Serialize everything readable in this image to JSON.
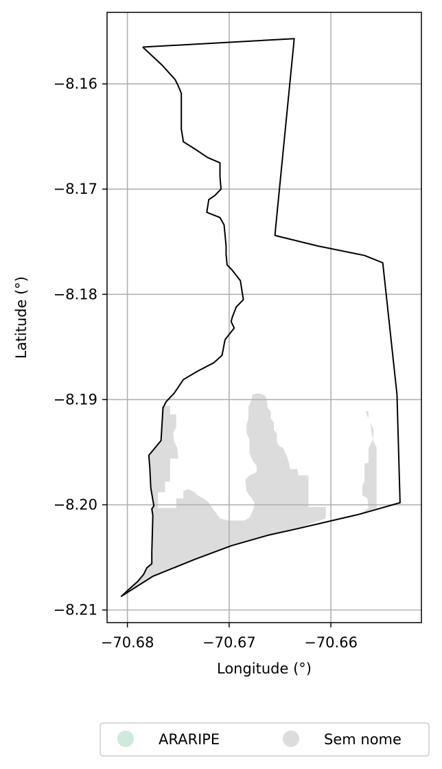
{
  "chart_data": {
    "type": "map",
    "title": "",
    "xlabel": "Longitude (°)",
    "ylabel": "Latitude (°)",
    "xlim": [
      -70.682,
      -70.6511
    ],
    "ylim": [
      -8.2112,
      -8.1532
    ],
    "grid": true,
    "x_ticks": [
      -70.68,
      -70.67,
      -70.66
    ],
    "x_tick_labels": [
      "−70.68",
      "−70.67",
      "−70.66"
    ],
    "y_ticks": [
      -8.16,
      -8.17,
      -8.18,
      -8.19,
      -8.2,
      -8.21
    ],
    "y_tick_labels": [
      "−8.16",
      "−8.17",
      "−8.18",
      "−8.19",
      "−8.20",
      "−8.21"
    ],
    "boundary": {
      "name": "municipality boundary",
      "color": "#000000",
      "points": [
        [
          -70.6785,
          -8.1565
        ],
        [
          -70.6636,
          -8.1557
        ],
        [
          -70.6654,
          -8.1734
        ],
        [
          -70.6655,
          -8.1744
        ],
        [
          -70.6613,
          -8.1754
        ],
        [
          -70.6567,
          -8.1763
        ],
        [
          -70.6549,
          -8.177
        ],
        [
          -70.6535,
          -8.1895
        ],
        [
          -70.6532,
          -8.1998
        ],
        [
          -70.6572,
          -8.2009
        ],
        [
          -70.6612,
          -8.2018
        ],
        [
          -70.6634,
          -8.2023
        ],
        [
          -70.6662,
          -8.2029
        ],
        [
          -70.6698,
          -8.2039
        ],
        [
          -70.6734,
          -8.2052
        ],
        [
          -70.6775,
          -8.2068
        ],
        [
          -70.6806,
          -8.2087
        ],
        [
          -70.6797,
          -8.2079
        ],
        [
          -70.679,
          -8.2073
        ],
        [
          -70.6784,
          -8.2066
        ],
        [
          -70.6781,
          -8.206
        ],
        [
          -70.6776,
          -8.2056
        ],
        [
          -70.6776,
          -8.2045
        ],
        [
          -70.6775,
          -8.201
        ],
        [
          -70.6776,
          -8.2004
        ],
        [
          -70.6774,
          -8.2001
        ],
        [
          -70.6777,
          -8.1984
        ],
        [
          -70.6778,
          -8.1965
        ],
        [
          -70.6779,
          -8.1953
        ],
        [
          -70.6767,
          -8.1939
        ],
        [
          -70.6765,
          -8.1908
        ],
        [
          -70.6762,
          -8.1902
        ],
        [
          -70.6754,
          -8.1894
        ],
        [
          -70.6745,
          -8.1881
        ],
        [
          -70.6731,
          -8.1873
        ],
        [
          -70.6715,
          -8.1865
        ],
        [
          -70.6707,
          -8.1858
        ],
        [
          -70.6704,
          -8.1843
        ],
        [
          -70.6695,
          -8.1832
        ],
        [
          -70.6698,
          -8.1826
        ],
        [
          -70.6697,
          -8.1822
        ],
        [
          -70.6693,
          -8.1812
        ],
        [
          -70.6686,
          -8.1805
        ],
        [
          -70.6689,
          -8.1787
        ],
        [
          -70.6697,
          -8.1777
        ],
        [
          -70.6702,
          -8.1772
        ],
        [
          -70.6703,
          -8.1762
        ],
        [
          -70.6703,
          -8.1754
        ],
        [
          -70.6705,
          -8.1734
        ],
        [
          -70.6709,
          -8.1727
        ],
        [
          -70.6722,
          -8.1722
        ],
        [
          -70.672,
          -8.171
        ],
        [
          -70.6714,
          -8.1706
        ],
        [
          -70.6708,
          -8.17
        ],
        [
          -70.6709,
          -8.1688
        ],
        [
          -70.6709,
          -8.1675
        ],
        [
          -70.6721,
          -8.167
        ],
        [
          -70.6735,
          -8.1661
        ],
        [
          -70.6745,
          -8.1655
        ],
        [
          -70.6747,
          -8.1643
        ],
        [
          -70.6747,
          -8.1622
        ],
        [
          -70.6747,
          -8.1609
        ],
        [
          -70.675,
          -8.1602
        ],
        [
          -70.6753,
          -8.1596
        ],
        [
          -70.6766,
          -8.1582
        ],
        [
          -70.6785,
          -8.1565
        ]
      ]
    },
    "categories": [
      {
        "name": "ARARIPE",
        "color": "#cfeadc",
        "regions": []
      },
      {
        "name": "Sem nome",
        "color": "#dcdcdc",
        "regions": [
          [
            [
              -70.6766,
              -8.1906
            ],
            [
              -70.6758,
              -8.1906
            ],
            [
              -70.6758,
              -8.1914
            ],
            [
              -70.6752,
              -8.1914
            ],
            [
              -70.6752,
              -8.1926
            ],
            [
              -70.6755,
              -8.1932
            ],
            [
              -70.6754,
              -8.194
            ],
            [
              -70.6751,
              -8.1946
            ],
            [
              -70.675,
              -8.1956
            ],
            [
              -70.6758,
              -8.1956
            ],
            [
              -70.6758,
              -8.1978
            ],
            [
              -70.6763,
              -8.1978
            ],
            [
              -70.6763,
              -8.1988
            ],
            [
              -70.677,
              -8.1988
            ],
            [
              -70.677,
              -8.2003
            ],
            [
              -70.6752,
              -8.2003
            ],
            [
              -70.6752,
              -8.1994
            ],
            [
              -70.6745,
              -8.1994
            ],
            [
              -70.6745,
              -8.1987
            ],
            [
              -70.674,
              -8.1985
            ],
            [
              -70.6734,
              -8.1988
            ],
            [
              -70.6731,
              -8.1991
            ],
            [
              -70.6725,
              -8.1994
            ],
            [
              -70.672,
              -8.1998
            ],
            [
              -70.6715,
              -8.2005
            ],
            [
              -70.6709,
              -8.2013
            ],
            [
              -70.6701,
              -8.2015
            ],
            [
              -70.6692,
              -8.2015
            ],
            [
              -70.6685,
              -8.2015
            ],
            [
              -70.668,
              -8.2012
            ],
            [
              -70.6676,
              -8.2004
            ],
            [
              -70.6675,
              -8.1998
            ],
            [
              -70.6678,
              -8.1994
            ],
            [
              -70.6683,
              -8.1987
            ],
            [
              -70.6684,
              -8.1976
            ],
            [
              -70.668,
              -8.1972
            ],
            [
              -70.6673,
              -8.1969
            ],
            [
              -70.6673,
              -8.1963
            ],
            [
              -70.6677,
              -8.1958
            ],
            [
              -70.668,
              -8.1951
            ],
            [
              -70.668,
              -8.1938
            ],
            [
              -70.6683,
              -8.1932
            ],
            [
              -70.6683,
              -8.1924
            ],
            [
              -70.6681,
              -8.1918
            ],
            [
              -70.6681,
              -8.1907
            ],
            [
              -70.6678,
              -8.19
            ],
            [
              -70.6677,
              -8.1895
            ],
            [
              -70.6671,
              -8.1894
            ],
            [
              -70.6665,
              -8.1896
            ],
            [
              -70.6663,
              -8.19
            ],
            [
              -70.6662,
              -8.1908
            ],
            [
              -70.6659,
              -8.1911
            ],
            [
              -70.6659,
              -8.1918
            ],
            [
              -70.6656,
              -8.1922
            ],
            [
              -70.6656,
              -8.1929
            ],
            [
              -70.6653,
              -8.1932
            ],
            [
              -70.6653,
              -8.194
            ],
            [
              -70.6651,
              -8.1944
            ],
            [
              -70.6647,
              -8.1946
            ],
            [
              -70.6643,
              -8.1954
            ],
            [
              -70.6641,
              -8.1961
            ],
            [
              -70.664,
              -8.1966
            ],
            [
              -70.6633,
              -8.1966
            ],
            [
              -70.6632,
              -8.1972
            ],
            [
              -70.6622,
              -8.1972
            ],
            [
              -70.6622,
              -8.2002
            ],
            [
              -70.6605,
              -8.2002
            ],
            [
              -70.6605,
              -8.2013
            ],
            [
              -70.6634,
              -8.2023
            ],
            [
              -70.6662,
              -8.2029
            ],
            [
              -70.6698,
              -8.2039
            ],
            [
              -70.6734,
              -8.2052
            ],
            [
              -70.6775,
              -8.2068
            ],
            [
              -70.6806,
              -8.2087
            ],
            [
              -70.6797,
              -8.2079
            ],
            [
              -70.679,
              -8.2073
            ],
            [
              -70.6784,
              -8.2066
            ],
            [
              -70.6781,
              -8.206
            ],
            [
              -70.6776,
              -8.2056
            ],
            [
              -70.6776,
              -8.2045
            ],
            [
              -70.6775,
              -8.201
            ],
            [
              -70.6776,
              -8.2004
            ],
            [
              -70.6774,
              -8.2001
            ],
            [
              -70.6777,
              -8.1984
            ],
            [
              -70.6778,
              -8.1965
            ],
            [
              -70.6779,
              -8.1953
            ],
            [
              -70.6767,
              -8.1939
            ],
            [
              -70.6766,
              -8.1906
            ]
          ],
          [
            [
              -70.6566,
              -8.1911
            ],
            [
              -70.6563,
              -8.1911
            ],
            [
              -70.6563,
              -8.1918
            ],
            [
              -70.6561,
              -8.1922
            ],
            [
              -70.656,
              -8.1933
            ],
            [
              -70.6558,
              -8.1937
            ],
            [
              -70.6563,
              -8.1946
            ],
            [
              -70.6563,
              -8.196
            ],
            [
              -70.6567,
              -8.1961
            ],
            [
              -70.6567,
              -8.1978
            ],
            [
              -70.6569,
              -8.1982
            ],
            [
              -70.6569,
              -8.1991
            ],
            [
              -70.6564,
              -8.1994
            ],
            [
              -70.6563,
              -8.2003
            ],
            [
              -70.6572,
              -8.2009
            ],
            [
              -70.6555,
              -8.2003
            ],
            [
              -70.6555,
              -8.1946
            ],
            [
              -70.6558,
              -8.194
            ],
            [
              -70.6558,
              -8.1929
            ],
            [
              -70.6561,
              -8.1922
            ],
            [
              -70.6564,
              -8.1916
            ],
            [
              -70.6566,
              -8.1911
            ]
          ]
        ]
      }
    ]
  }
}
